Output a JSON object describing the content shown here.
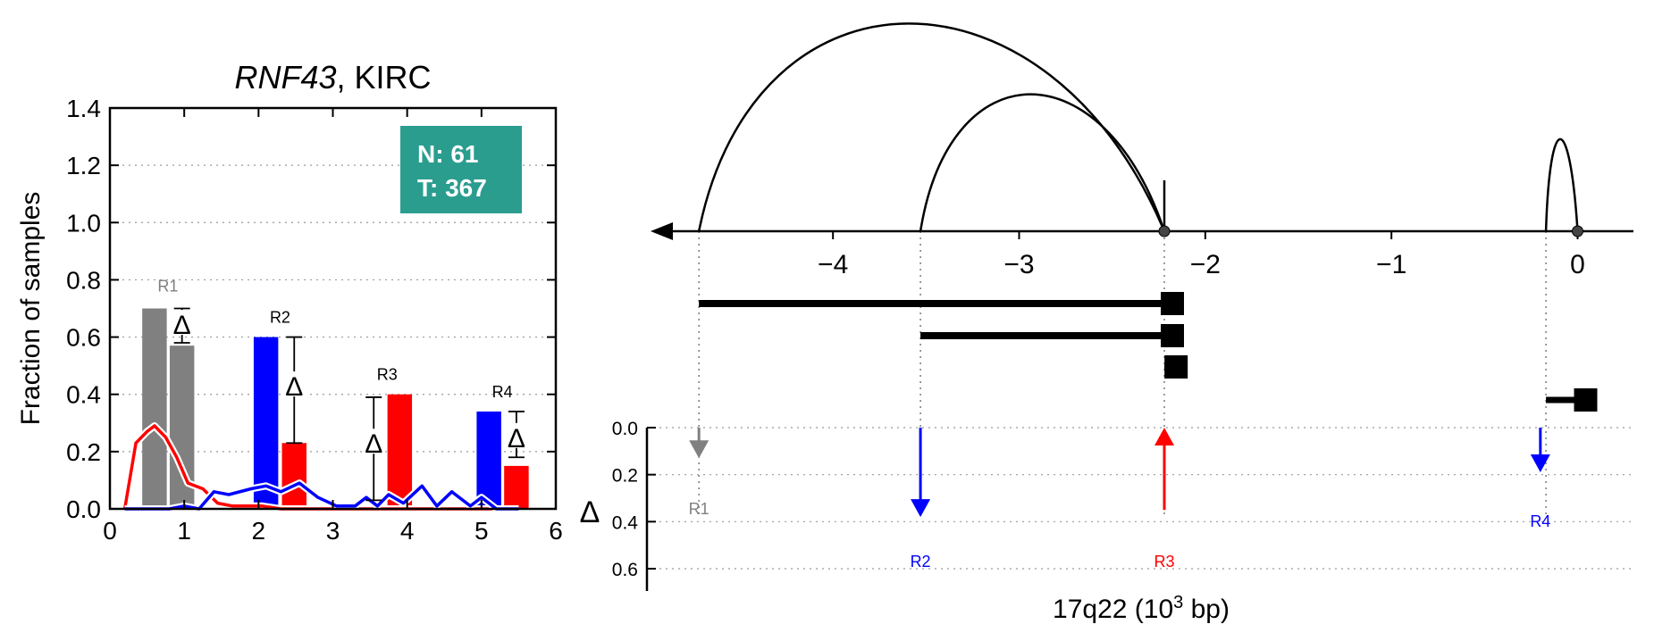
{
  "chart_data": [
    {
      "type": "bar",
      "title_gene": "RNF43",
      "title_rest": ", KIRC",
      "ylabel": "Fraction of samples",
      "xlim": [
        0,
        6
      ],
      "ylim": [
        0,
        1.4
      ],
      "xticks": [
        "0",
        "1",
        "2",
        "3",
        "4",
        "5",
        "6"
      ],
      "yticks": [
        "0.0",
        "0.2",
        "0.4",
        "0.6",
        "0.8",
        "1.0",
        "1.2",
        "1.4"
      ],
      "grid": "horizontal-dotted",
      "legend_box": {
        "line1": "N: 61",
        "line2": "T: 367",
        "color": "#2a9d8f",
        "placement": "top-right"
      },
      "bars": [
        {
          "x": 0.6,
          "value": 0.7,
          "color": "#808080"
        },
        {
          "x": 0.97,
          "value": 0.57,
          "color": "#808080"
        },
        {
          "x": 2.1,
          "value": 0.6,
          "color": "#0000ff"
        },
        {
          "x": 2.48,
          "value": 0.23,
          "color": "#ff0000"
        },
        {
          "x": 3.9,
          "value": 0.4,
          "color": "#ff0000"
        },
        {
          "x": 5.1,
          "value": 0.34,
          "color": "#0000ff"
        },
        {
          "x": 5.47,
          "value": 0.15,
          "color": "#ff0000"
        }
      ],
      "region_labels": [
        {
          "text": "R1",
          "x": 0.78,
          "y": 0.76,
          "color": "#808080"
        },
        {
          "text": "R2",
          "x": 2.29,
          "y": 0.65,
          "color": "#000000"
        },
        {
          "text": "R3",
          "x": 3.73,
          "y": 0.45,
          "color": "#000000"
        },
        {
          "text": "R4",
          "x": 5.28,
          "y": 0.39,
          "color": "#000000"
        }
      ],
      "delta_markers": [
        {
          "symbol": "Δ",
          "x": 0.97,
          "y": 0.645,
          "err_low": 0.58,
          "err_high": 0.7
        },
        {
          "symbol": "Δ",
          "x": 2.48,
          "y": 0.43,
          "err_low": 0.23,
          "err_high": 0.6
        },
        {
          "symbol": "Δ",
          "x": 3.55,
          "y": 0.23,
          "err_low": 0.03,
          "err_high": 0.39
        },
        {
          "symbol": "Δ",
          "x": 5.47,
          "y": 0.25,
          "err_low": 0.18,
          "err_high": 0.34
        }
      ],
      "series": [
        {
          "color": "#ff0000",
          "x": [
            0.2,
            0.35,
            0.5,
            0.6,
            0.75,
            0.9,
            1.05,
            1.25,
            1.45,
            1.65,
            1.85,
            2.05,
            2.3,
            2.6,
            3.0,
            3.5,
            4.0,
            4.5,
            5.0,
            5.5
          ],
          "values": [
            0.0,
            0.23,
            0.27,
            0.29,
            0.25,
            0.18,
            0.09,
            0.07,
            0.02,
            0.01,
            0.01,
            0.01,
            0.0,
            0.0,
            0.0,
            0.0,
            0.0,
            0.0,
            0.0,
            0.0
          ]
        },
        {
          "color": "#0000ff",
          "x": [
            0.2,
            0.8,
            1.0,
            1.2,
            1.4,
            1.6,
            1.9,
            2.1,
            2.3,
            2.55,
            2.8,
            3.05,
            3.3,
            3.45,
            3.6,
            3.75,
            3.95,
            4.2,
            4.4,
            4.6,
            4.85,
            5.0,
            5.2,
            5.5
          ],
          "values": [
            0.0,
            0.0,
            0.01,
            0.0,
            0.06,
            0.05,
            0.07,
            0.08,
            0.06,
            0.09,
            0.04,
            0.01,
            0.01,
            0.04,
            0.01,
            0.05,
            0.02,
            0.08,
            0.01,
            0.06,
            0.01,
            0.04,
            0.0,
            0.0
          ]
        }
      ]
    },
    {
      "type": "diagram",
      "xlabel": "17q22 (10",
      "xlabel_sup": "3",
      "xlabel_end": " bp)",
      "xlim": [
        -4.98,
        0.3
      ],
      "xticks": [
        "−4",
        "−3",
        "−2",
        "−1",
        "0"
      ],
      "xtick_values": [
        -4,
        -3,
        -2,
        -1,
        0
      ],
      "arcs": [
        {
          "from": -4.72,
          "to": -2.22,
          "peak": 4.4
        },
        {
          "from": -3.53,
          "to": -2.22,
          "peak": 2.9
        },
        {
          "from": -0.17,
          "to": 0.0,
          "peak": 1.95
        }
      ],
      "anchor_points": [
        -2.22,
        0.0
      ],
      "segments": [
        {
          "from": -4.72,
          "to": -2.22
        },
        {
          "from": -3.53,
          "to": -2.22
        },
        {
          "from": -2.2,
          "to": -2.22
        },
        {
          "from": -0.17,
          "to": 0.0
        }
      ],
      "delta_axis": {
        "symbol": "Δ",
        "ylim": [
          0,
          0.6
        ],
        "yticks": [
          "0.0",
          "0.2",
          "0.4",
          "0.6"
        ]
      },
      "delta_arrows": [
        {
          "label": "R1",
          "x": -4.72,
          "value": 0.13,
          "direction": "down",
          "color": "#808080"
        },
        {
          "label": "R2",
          "x": -3.53,
          "value": 0.38,
          "direction": "down",
          "color": "#0000ff"
        },
        {
          "label": "R3",
          "x": -2.22,
          "value": 0.35,
          "direction": "up",
          "color": "#ff0000"
        },
        {
          "label": "R4",
          "x": -0.2,
          "value": 0.19,
          "direction": "down",
          "color": "#0000ff"
        }
      ]
    }
  ]
}
